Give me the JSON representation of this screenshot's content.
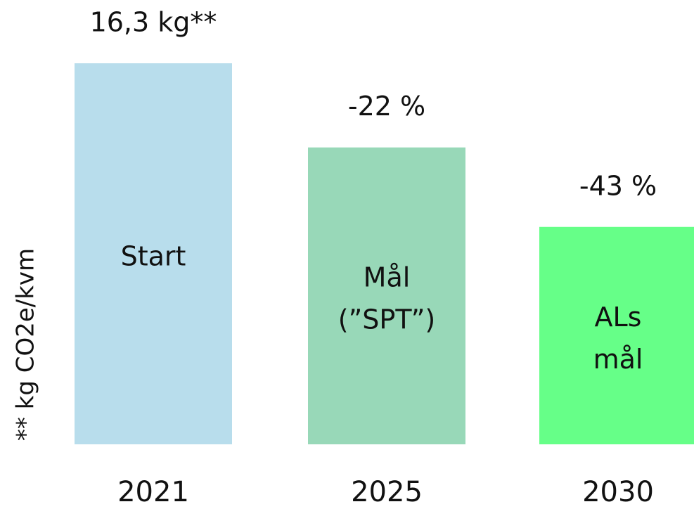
{
  "chart_data": {
    "type": "bar",
    "y_label": "** kg CO2e/kvm",
    "categories": [
      "2021",
      "2025",
      "2030"
    ],
    "values": [
      16.3,
      12.7,
      9.3
    ],
    "value_labels": [
      "16,3 kg**",
      "-22 %",
      "-43 %"
    ],
    "bar_labels": [
      [
        "Start"
      ],
      [
        "Mål",
        "(”SPT”)"
      ],
      [
        "ALs",
        "mål"
      ]
    ],
    "colors": [
      "#b8ddec",
      "#98d8b8",
      "#66ff88"
    ]
  }
}
